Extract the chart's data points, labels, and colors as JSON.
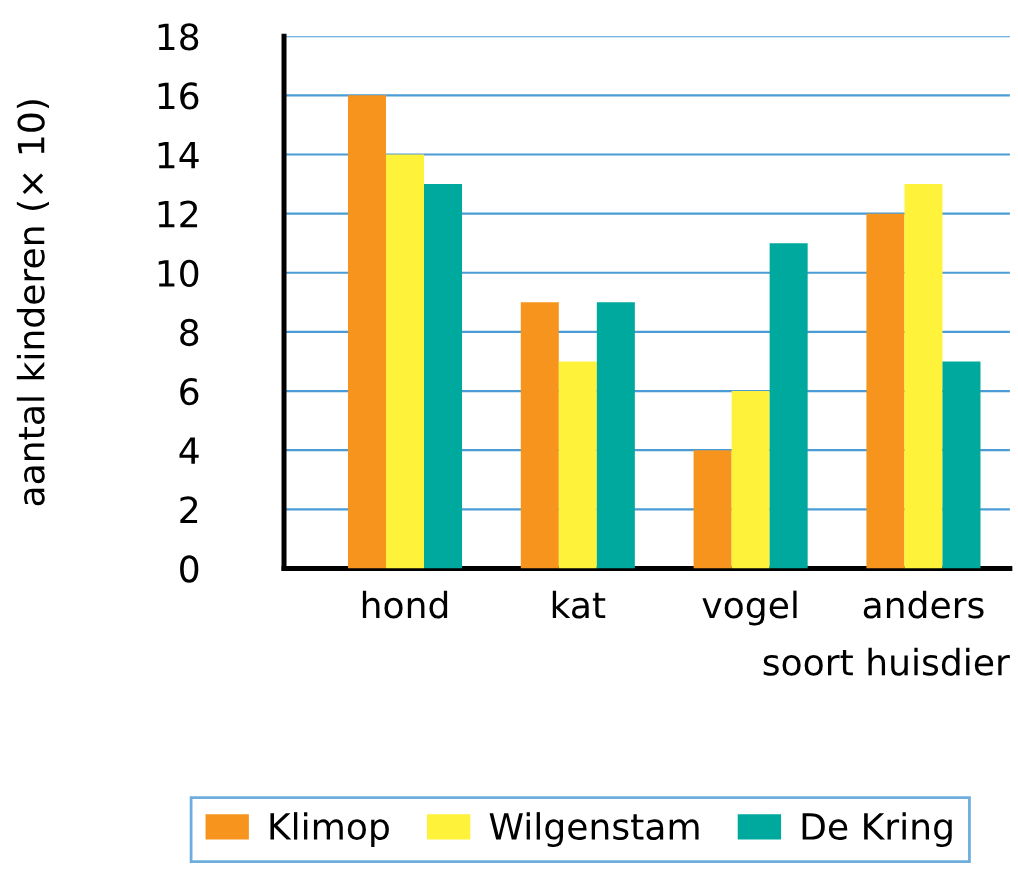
{
  "chart_data": {
    "type": "bar",
    "xlabel": "soort huisdier",
    "ylabel": "aantal kinderen (× 10)",
    "categories": [
      "hond",
      "kat",
      "vogel",
      "anders"
    ],
    "series": [
      {
        "name": "Klimop",
        "color": "#f7941d",
        "values": [
          16,
          9,
          4,
          12
        ]
      },
      {
        "name": "Wilgenstam",
        "color": "#fff23a",
        "values": [
          14,
          7,
          6,
          13
        ]
      },
      {
        "name": "De Kring",
        "color": "#00a99d",
        "values": [
          13,
          9,
          11,
          7
        ]
      }
    ],
    "ylim": [
      0,
      18
    ],
    "yticks": [
      0,
      2,
      4,
      6,
      8,
      10,
      12,
      14,
      16,
      18
    ],
    "grid": "y",
    "legend": "bottom"
  }
}
